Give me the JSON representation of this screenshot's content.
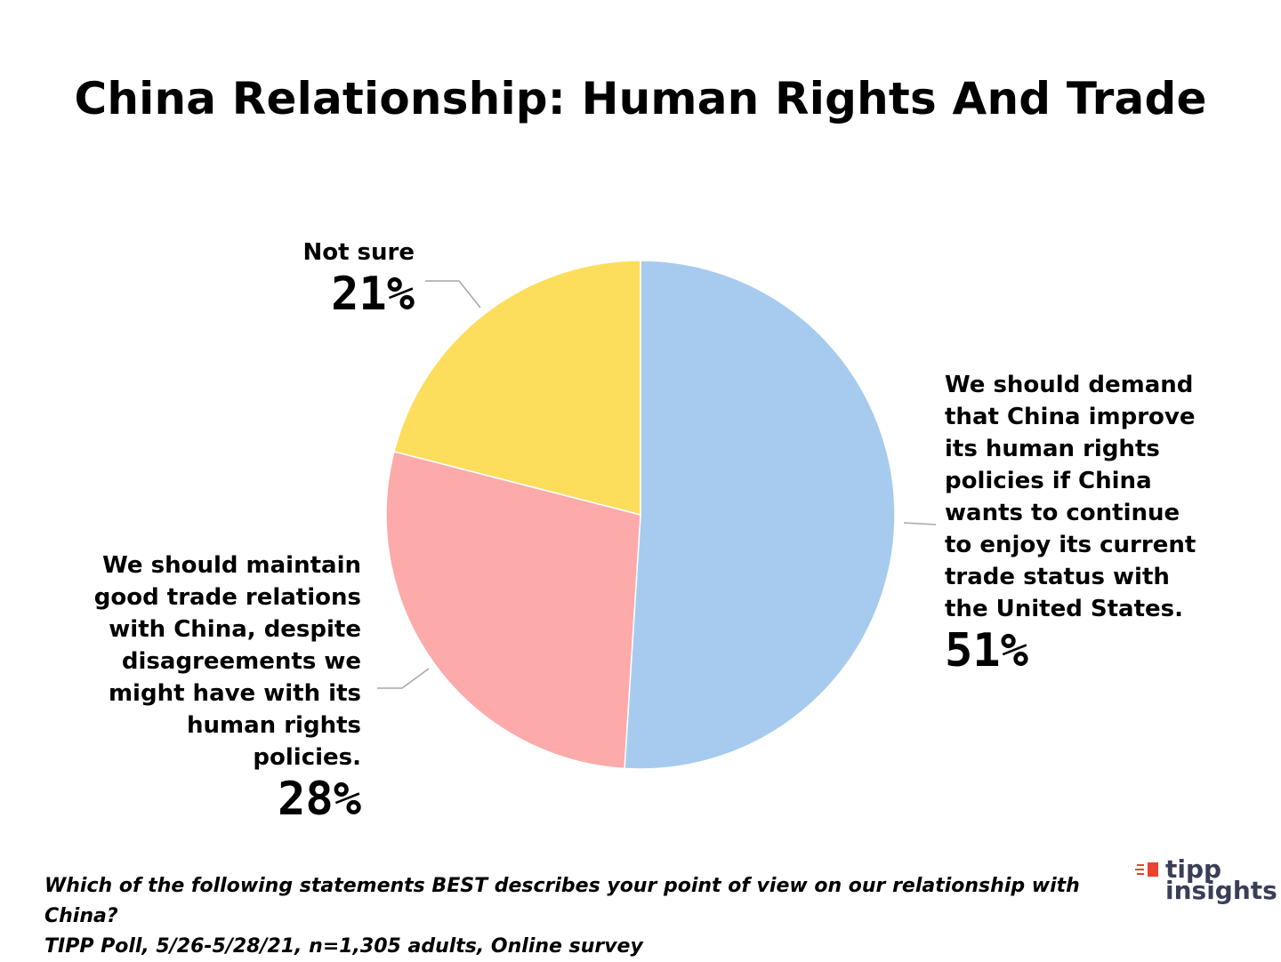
{
  "chart_data": {
    "type": "pie",
    "title": "China Relationship:  Human Rights And Trade",
    "slices": [
      {
        "label": "We should demand\nthat China improve\nits human rights\npolicies if China\nwants to continue\nto enjoy its current\ntrade status with\nthe United States.",
        "value": 51,
        "display": "51%",
        "color": "#a7cbee"
      },
      {
        "label": "We should maintain\ngood trade relations\nwith China, despite\ndisagreements we\nmight have with its\nhuman rights\npolicies.",
        "value": 28,
        "display": "28%",
        "color": "#fcaaaa"
      },
      {
        "label": "Not sure",
        "value": 21,
        "display": "21%",
        "color": "#fdde5c"
      }
    ],
    "start_angle_deg": 0,
    "direction": "clockwise"
  },
  "footnote": {
    "question": "Which of the following statements BEST describes your point of view on our relationship with China?",
    "source": "TIPP Poll, 5/26-5/28/21, n=1,305 adults, Online survey"
  },
  "logo": {
    "line1": "tipp",
    "line2": "insights",
    "mark_color": "#e8432e",
    "text_color": "#3a3f58"
  }
}
